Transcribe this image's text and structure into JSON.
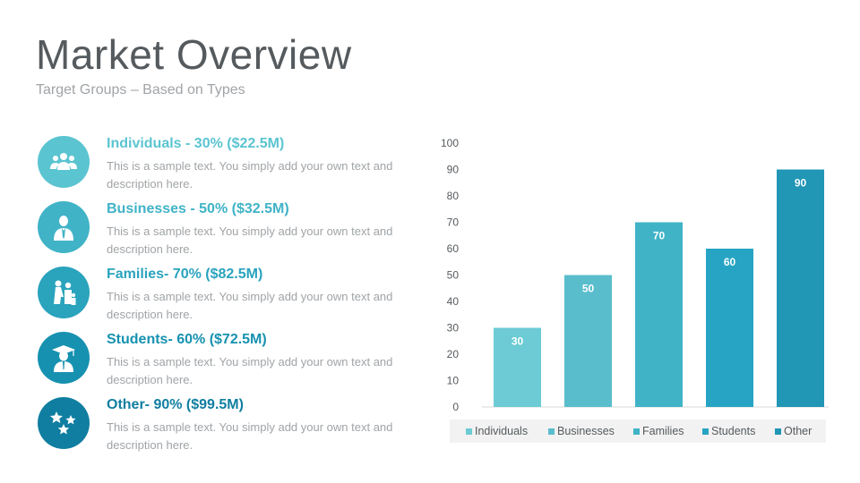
{
  "header": {
    "title": "Market Overview",
    "subtitle": "Target Groups – Based on Types"
  },
  "items": [
    {
      "title": "Individuals - 30% ($22.5M)",
      "description": "This is a sample text. You simply add your own text and description here.",
      "color": "#5bc4d1",
      "icon": "group-icon"
    },
    {
      "title": "Businesses - 50% ($32.5M)",
      "description": "This is a sample text. You simply add your own text and description here.",
      "color": "#40b3c7",
      "icon": "businessman-icon"
    },
    {
      "title": "Families- 70% ($82.5M)",
      "description": "This is a sample text. You simply add your own text and description here.",
      "color": "#2aa3bd",
      "icon": "family-icon"
    },
    {
      "title": "Students- 60% ($72.5M)",
      "description": "This is a sample text. You simply add your own text and description here.",
      "color": "#1691b0",
      "icon": "graduate-icon"
    },
    {
      "title": "Other- 90% ($99.5M)",
      "description": "This is a sample text. You simply add your own text and description here.",
      "color": "#107ea1",
      "icon": "stars-icon"
    }
  ],
  "chart_data": {
    "type": "bar",
    "categories": [
      "Individuals",
      "Businesses",
      "Families",
      "Students",
      "Other"
    ],
    "values": [
      30,
      50,
      70,
      60,
      90
    ],
    "colors": [
      "#6ccbd4",
      "#59bdcc",
      "#40b3c7",
      "#27a4c3",
      "#2196b5"
    ],
    "ylim": [
      0,
      100
    ],
    "yticks": [
      0,
      10,
      20,
      30,
      40,
      50,
      60,
      70,
      80,
      90,
      100
    ],
    "grid": false,
    "data_labels": true,
    "legend": "bottom"
  }
}
